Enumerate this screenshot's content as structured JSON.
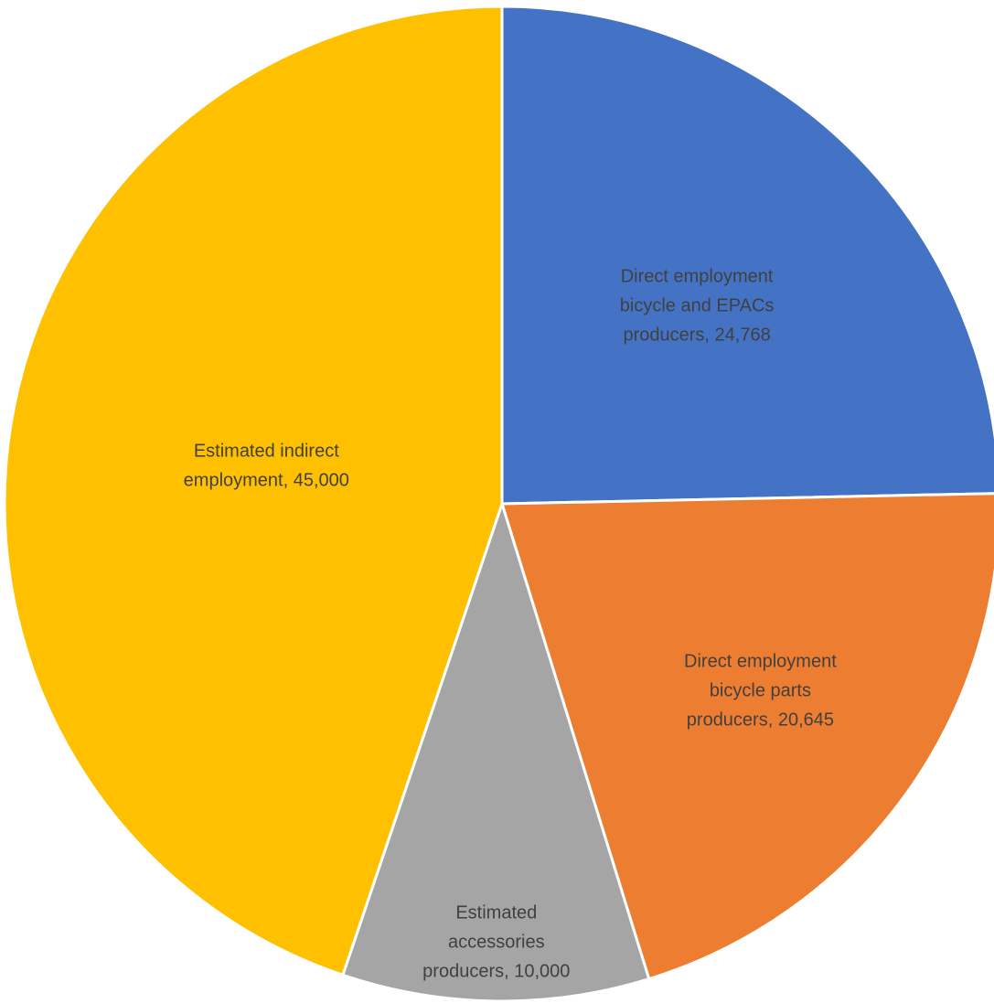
{
  "chart_data": {
    "type": "pie",
    "title": "",
    "slices": [
      {
        "label": "Direct employment bicycle and EPACs producers",
        "value": 24768,
        "value_text": "24,768",
        "color": "#4472C4"
      },
      {
        "label": "Direct employment bicycle parts producers",
        "value": 20645,
        "value_text": "20,645",
        "color": "#ED7D31"
      },
      {
        "label": "Estimated accessories producers",
        "value": 10000,
        "value_text": "10,000",
        "color": "#A5A5A5"
      },
      {
        "label": "Estimated indirect employment",
        "value": 45000,
        "value_text": "45,000",
        "color": "#FFC000"
      }
    ],
    "start_angle_deg": 0,
    "direction": "clockwise",
    "legend": "none",
    "data_labels": "category, value"
  }
}
